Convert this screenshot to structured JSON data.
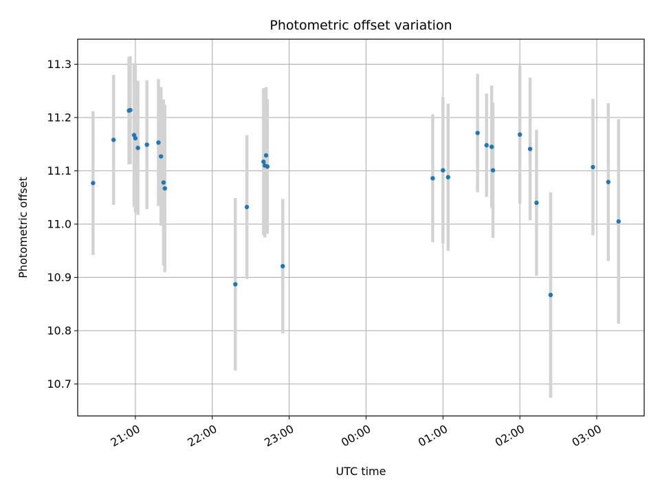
{
  "chart_data": {
    "type": "scatter",
    "title": "Photometric offset variation",
    "xlabel": "UTC time",
    "ylabel": "Photometric offset",
    "x_axis_kind": "time",
    "xlim": [
      "20:15",
      "03:37"
    ],
    "ylim": [
      10.64,
      11.347
    ],
    "grid": true,
    "x_ticks": [
      "21:00",
      "22:00",
      "23:00",
      "00:00",
      "01:00",
      "02:00",
      "03:00"
    ],
    "y_ticks": [
      "10.7",
      "10.8",
      "10.9",
      "11.0",
      "11.1",
      "11.2",
      "11.3"
    ],
    "colors": {
      "point": "#1f77b4",
      "errorbar": "#d3d3d3",
      "grid": "#b0b0b0"
    },
    "series": [
      {
        "points": [
          {
            "x": "20:27",
            "y": 11.077,
            "err": 0.135
          },
          {
            "x": "20:43",
            "y": 11.158,
            "err": 0.122
          },
          {
            "x": "20:55",
            "y": 11.213,
            "err": 0.101
          },
          {
            "x": "20:56",
            "y": 11.214,
            "err": 0.101
          },
          {
            "x": "20:59",
            "y": 11.167,
            "err": 0.135
          },
          {
            "x": "21:00",
            "y": 11.161,
            "err": 0.139
          },
          {
            "x": "21:02",
            "y": 11.143,
            "err": 0.126
          },
          {
            "x": "21:09",
            "y": 11.149,
            "err": 0.121
          },
          {
            "x": "21:18",
            "y": 11.153,
            "err": 0.119
          },
          {
            "x": "21:20",
            "y": 11.127,
            "err": 0.13
          },
          {
            "x": "21:22",
            "y": 11.078,
            "err": 0.156
          },
          {
            "x": "21:23",
            "y": 11.067,
            "err": 0.157
          },
          {
            "x": "22:18",
            "y": 10.887,
            "err": 0.162
          },
          {
            "x": "22:27",
            "y": 11.032,
            "err": 0.135
          },
          {
            "x": "22:40",
            "y": 11.117,
            "err": 0.138
          },
          {
            "x": "22:41",
            "y": 11.11,
            "err": 0.135
          },
          {
            "x": "22:42",
            "y": 11.129,
            "err": 0.128
          },
          {
            "x": "22:43",
            "y": 11.108,
            "err": 0.126
          },
          {
            "x": "22:55",
            "y": 10.921,
            "err": 0.126
          },
          {
            "x": "00:52",
            "y": 11.086,
            "err": 0.12
          },
          {
            "x": "01:00",
            "y": 11.101,
            "err": 0.137
          },
          {
            "x": "01:04",
            "y": 11.088,
            "err": 0.138
          },
          {
            "x": "01:27",
            "y": 11.171,
            "err": 0.111
          },
          {
            "x": "01:34",
            "y": 11.148,
            "err": 0.097
          },
          {
            "x": "01:38",
            "y": 11.145,
            "err": 0.115
          },
          {
            "x": "01:39",
            "y": 11.101,
            "err": 0.127
          },
          {
            "x": "02:00",
            "y": 11.168,
            "err": 0.13
          },
          {
            "x": "02:08",
            "y": 11.141,
            "err": 0.134
          },
          {
            "x": "02:13",
            "y": 11.04,
            "err": 0.137
          },
          {
            "x": "02:24",
            "y": 10.867,
            "err": 0.193
          },
          {
            "x": "02:57",
            "y": 11.107,
            "err": 0.128
          },
          {
            "x": "03:09",
            "y": 11.079,
            "err": 0.148
          },
          {
            "x": "03:17",
            "y": 11.005,
            "err": 0.192
          }
        ]
      }
    ]
  }
}
